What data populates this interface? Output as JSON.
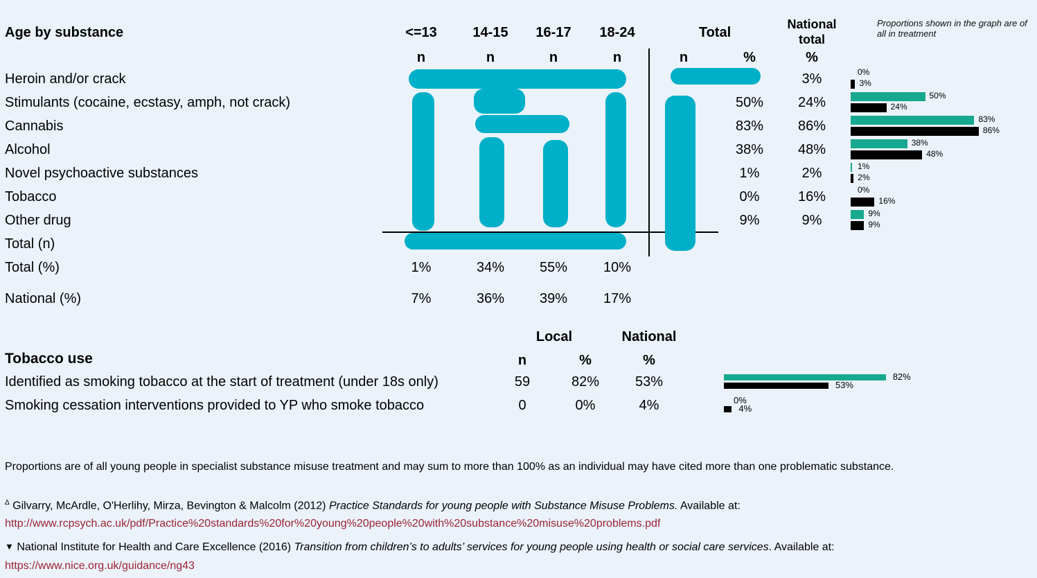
{
  "substance": {
    "title": "Age by substance",
    "age_headers": [
      "<=13",
      "14-15",
      "16-17",
      "18-24"
    ],
    "n_label": "n",
    "total_header": "Total",
    "pct_label": "%",
    "national_header": "National total",
    "graph_note": "Proportions shown in the graph are of all in treatment",
    "rows": [
      {
        "label": "Heroin and/or crack",
        "pct": "",
        "nat": "3%"
      },
      {
        "label": "Stimulants (cocaine, ecstasy, amph, not crack)",
        "pct": "50%",
        "nat": "24%"
      },
      {
        "label": "Cannabis",
        "pct": "83%",
        "nat": "86%"
      },
      {
        "label": "Alcohol",
        "pct": "38%",
        "nat": "48%"
      },
      {
        "label": "Novel psychoactive substances",
        "pct": "1%",
        "nat": "2%"
      },
      {
        "label": "Tobacco",
        "pct": "0%",
        "nat": "16%"
      },
      {
        "label": "Other drug",
        "pct": "9%",
        "nat": "9%"
      }
    ],
    "total_n_label": "Total (n)",
    "total_pct_label": "Total (%)",
    "total_pct": [
      "1%",
      "34%",
      "55%",
      "10%"
    ],
    "national_pct_label": "National (%)",
    "national_pct": [
      "7%",
      "36%",
      "39%",
      "17%"
    ]
  },
  "substance_graph": [
    {
      "local": 0,
      "national": 3,
      "local_label": "0%",
      "national_label": "3%"
    },
    {
      "local": 50,
      "national": 24,
      "local_label": "50%",
      "national_label": "24%"
    },
    {
      "local": 83,
      "national": 86,
      "local_label": "83%",
      "national_label": "86%"
    },
    {
      "local": 38,
      "national": 48,
      "local_label": "38%",
      "national_label": "48%"
    },
    {
      "local": 1,
      "national": 2,
      "local_label": "1%",
      "national_label": "2%"
    },
    {
      "local": 0,
      "national": 16,
      "local_label": "0%",
      "national_label": "16%"
    },
    {
      "local": 9,
      "national": 9,
      "local_label": "9%",
      "national_label": "9%"
    }
  ],
  "tobacco": {
    "title": "Tobacco use",
    "local_header": "Local",
    "national_header": "National",
    "n_label": "n",
    "pct_label": "%",
    "rows": [
      {
        "label": "Identified as smoking tobacco at the start of treatment (under 18s only)",
        "n": "59",
        "pct": "82%",
        "nat": "53%",
        "local_val": 82,
        "national_val": 53
      },
      {
        "label": "Smoking cessation interventions provided to YP who smoke tobacco",
        "n": "0",
        "pct": "0%",
        "nat": "4%",
        "local_val": 0,
        "national_val": 4
      }
    ]
  },
  "footer": {
    "note": "Proportions are of all young people in specialist substance misuse treatment and may sum to more than 100% as an individual may have cited more than one problematic substance.",
    "ref1_mark": "Δ",
    "ref1_text": "Gilvarry, McArdle, O'Herlihy, Mirza, Bevington & Malcolm (2012)",
    "ref1_italic": "Practice Standards for young people with Substance Misuse Problems.",
    "ref1_after": "Available at:",
    "ref1_url": "http://www.rcpsych.ac.uk/pdf/Practice%20standards%20for%20young%20people%20with%20substance%20misuse%20problems.pdf",
    "ref2_mark": "▼",
    "ref2_text": "National Institute for Health and Care Excellence (2016)",
    "ref2_italic": "Transition from children’s to adults’ services for young people using health or social care services",
    "ref2_after": ". Available at:",
    "ref2_url": "https://www.nice.org.uk/guidance/ng43"
  }
}
